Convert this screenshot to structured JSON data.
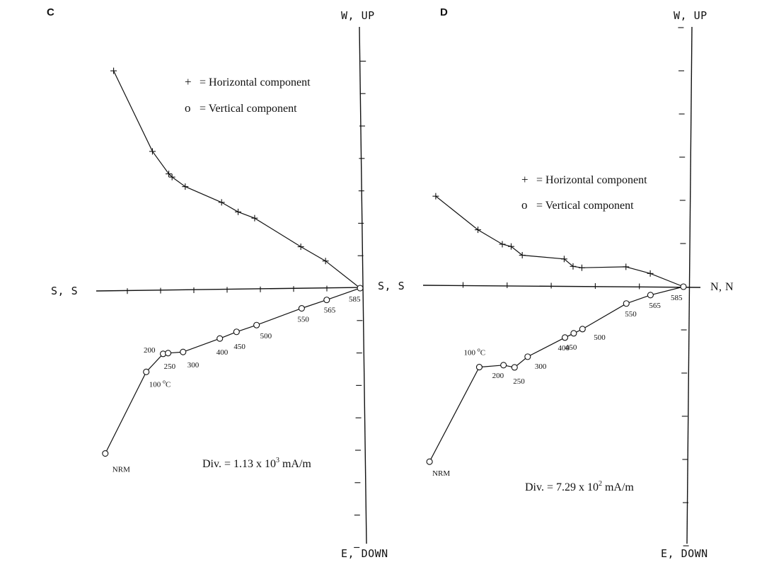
{
  "chart_data": [
    {
      "type": "scatter",
      "panel": "C",
      "axis_labels": {
        "top": "W, UP",
        "bottom": "E, DOWN",
        "left": "S, S",
        "right": "S, S"
      },
      "legend": {
        "horizontal_symbol": "+",
        "horizontal_text": "= Horizontal component",
        "vertical_symbol": "o",
        "vertical_text": "= Vertical component"
      },
      "division": {
        "prefix": "Div. = 1.13 x 10",
        "exponent": "3",
        "unit": " mA/m"
      },
      "temp_unit_superscript": "o",
      "temp_unit_suffix": "C",
      "series": [
        {
          "name": "Horizontal component",
          "marker": "+",
          "points": [
            {
              "x": -7.5,
              "y": 6.8
            },
            {
              "x": -6.3,
              "y": 4.3
            },
            {
              "x": -5.8,
              "y": 3.6
            },
            {
              "x": -5.7,
              "y": 3.5
            },
            {
              "x": -5.3,
              "y": 3.2
            },
            {
              "x": -4.2,
              "y": 2.7
            },
            {
              "x": -3.7,
              "y": 2.4
            },
            {
              "x": -3.2,
              "y": 2.2
            },
            {
              "x": -1.8,
              "y": 1.3
            },
            {
              "x": -1.05,
              "y": 0.85
            },
            {
              "x": 0,
              "y": 0
            }
          ]
        },
        {
          "name": "Vertical component",
          "marker": "o",
          "points": [
            {
              "x": -7.6,
              "y": -5.0,
              "label": "NRM"
            },
            {
              "x": -6.4,
              "y": -2.5,
              "label": "100 °C"
            },
            {
              "x": -5.9,
              "y": -1.95,
              "label": "200"
            },
            {
              "x": -5.75,
              "y": -1.93,
              "label": "250"
            },
            {
              "x": -5.3,
              "y": -1.9,
              "label": "300"
            },
            {
              "x": -4.2,
              "y": -1.5,
              "label": "400"
            },
            {
              "x": -3.7,
              "y": -1.3,
              "label": "450"
            },
            {
              "x": -3.1,
              "y": -1.1,
              "label": "500"
            },
            {
              "x": -1.75,
              "y": -0.6,
              "label": "550"
            },
            {
              "x": -1.0,
              "y": -0.35,
              "label": "565"
            },
            {
              "x": 0,
              "y": 0,
              "label": "585"
            }
          ]
        }
      ]
    },
    {
      "type": "scatter",
      "panel": "D",
      "axis_labels": {
        "top": "W, UP",
        "bottom": "E, DOWN",
        "left": "",
        "right": "N, N"
      },
      "legend": {
        "horizontal_symbol": "+",
        "horizontal_text": "= Horizontal component",
        "vertical_symbol": "o",
        "vertical_text": "= Vertical component"
      },
      "division": {
        "prefix": "Div. = 7.29 x 10",
        "exponent": "2",
        "unit": " mA/m"
      },
      "temp_unit_superscript": "o",
      "temp_unit_suffix": "C",
      "series": [
        {
          "name": "Horizontal component",
          "marker": "+",
          "points": [
            {
              "x": -5.6,
              "y": 2.05
            },
            {
              "x": -4.65,
              "y": 1.28
            },
            {
              "x": -4.1,
              "y": 0.95
            },
            {
              "x": -3.9,
              "y": 0.9
            },
            {
              "x": -3.65,
              "y": 0.7
            },
            {
              "x": -2.7,
              "y": 0.62
            },
            {
              "x": -2.5,
              "y": 0.45
            },
            {
              "x": -2.3,
              "y": 0.42
            },
            {
              "x": -1.3,
              "y": 0.45
            },
            {
              "x": -0.75,
              "y": 0.3
            },
            {
              "x": 0,
              "y": 0
            }
          ]
        },
        {
          "name": "Vertical component",
          "marker": "o",
          "points": [
            {
              "x": -5.8,
              "y": -4.1,
              "label": "NRM"
            },
            {
              "x": -4.65,
              "y": -1.9,
              "label": "100 °C"
            },
            {
              "x": -4.1,
              "y": -1.85,
              "label": "200"
            },
            {
              "x": -3.85,
              "y": -1.9,
              "label": "250"
            },
            {
              "x": -3.55,
              "y": -1.65,
              "label": "300"
            },
            {
              "x": -2.7,
              "y": -1.2,
              "label": "400"
            },
            {
              "x": -2.5,
              "y": -1.1,
              "label": "450"
            },
            {
              "x": -2.3,
              "y": -1.0,
              "label": "500"
            },
            {
              "x": -1.3,
              "y": -0.4,
              "label": "550"
            },
            {
              "x": -0.75,
              "y": -0.2,
              "label": "565"
            },
            {
              "x": 0,
              "y": 0,
              "label": "585"
            }
          ]
        }
      ]
    }
  ]
}
